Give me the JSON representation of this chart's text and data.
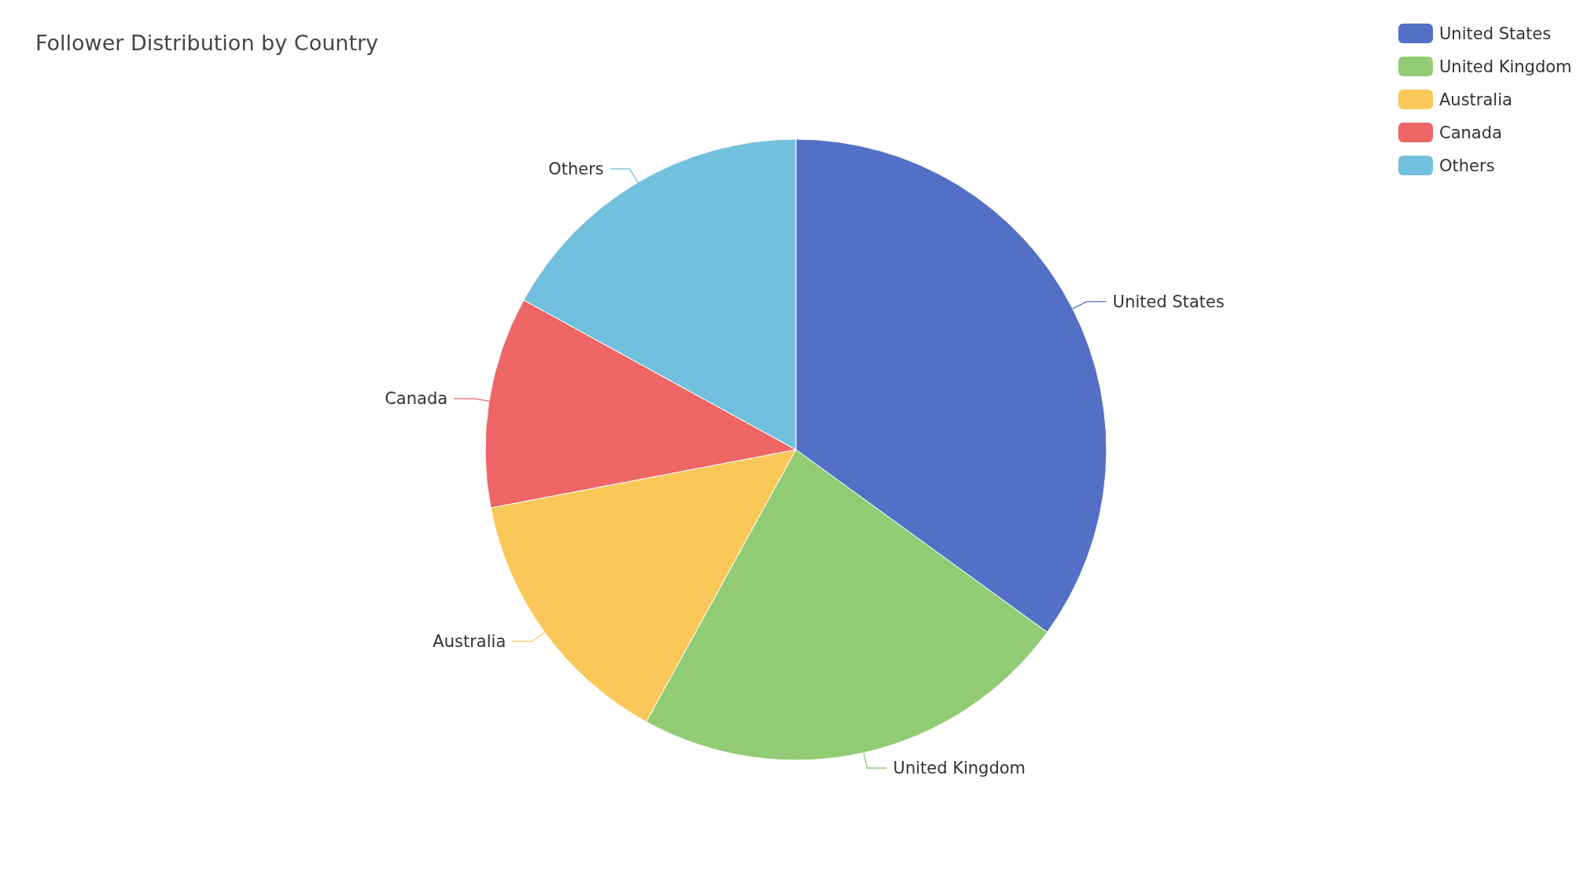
{
  "chart_data": {
    "type": "pie",
    "title": "Follower Distribution by Country",
    "categories": [
      "United States",
      "United Kingdom",
      "Australia",
      "Canada",
      "Others"
    ],
    "values": [
      35,
      23,
      14,
      11,
      17
    ],
    "colors": [
      "#5470c6",
      "#91cc75",
      "#fac858",
      "#ee6666",
      "#73c0de"
    ],
    "legend": "top right"
  }
}
